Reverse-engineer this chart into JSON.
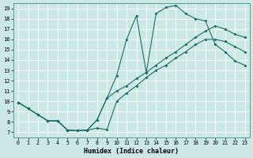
{
  "xlabel": "Humidex (Indice chaleur)",
  "bg_color": "#cce8e5",
  "line_color": "#1a6e6a",
  "xlim": [
    -0.5,
    23.5
  ],
  "ylim": [
    6.5,
    19.5
  ],
  "xticks": [
    0,
    1,
    2,
    3,
    4,
    5,
    6,
    7,
    8,
    9,
    10,
    11,
    12,
    13,
    14,
    15,
    16,
    17,
    18,
    19,
    20,
    21,
    22,
    23
  ],
  "yticks": [
    7,
    8,
    9,
    10,
    11,
    12,
    13,
    14,
    15,
    16,
    17,
    18,
    19
  ],
  "line1_x": [
    0,
    1,
    2,
    3,
    4,
    5,
    6,
    7,
    8,
    9,
    10,
    11,
    12,
    13,
    14,
    15,
    16,
    17,
    18,
    19,
    20,
    21,
    22,
    23
  ],
  "line1_y": [
    9.9,
    9.3,
    8.7,
    8.1,
    8.1,
    7.2,
    7.15,
    7.2,
    7.4,
    7.25,
    10.0,
    10.8,
    11.5,
    12.3,
    13.0,
    13.5,
    14.2,
    14.8,
    15.5,
    16.0,
    16.0,
    15.8,
    15.3,
    14.8
  ],
  "line2_x": [
    0,
    1,
    2,
    3,
    4,
    5,
    6,
    7,
    8,
    9,
    10,
    11,
    12,
    13,
    14,
    15,
    16,
    17,
    18,
    19,
    20,
    21,
    22,
    23
  ],
  "line2_y": [
    9.9,
    9.3,
    8.7,
    8.1,
    8.1,
    7.2,
    7.15,
    7.2,
    8.2,
    10.3,
    12.5,
    16.0,
    18.3,
    12.8,
    18.5,
    19.1,
    19.3,
    18.5,
    18.0,
    17.8,
    15.5,
    14.8,
    13.9,
    13.5
  ],
  "line3_x": [
    0,
    1,
    2,
    3,
    4,
    5,
    6,
    7,
    8,
    9,
    10,
    11,
    12,
    13,
    14,
    15,
    16,
    17,
    18,
    19,
    20,
    21,
    22,
    23
  ],
  "line3_y": [
    9.9,
    9.3,
    8.7,
    8.1,
    8.1,
    7.2,
    7.15,
    7.2,
    8.2,
    10.3,
    11.0,
    11.5,
    12.2,
    12.8,
    13.5,
    14.2,
    14.8,
    15.5,
    16.2,
    16.8,
    17.3,
    17.0,
    16.5,
    16.2
  ]
}
